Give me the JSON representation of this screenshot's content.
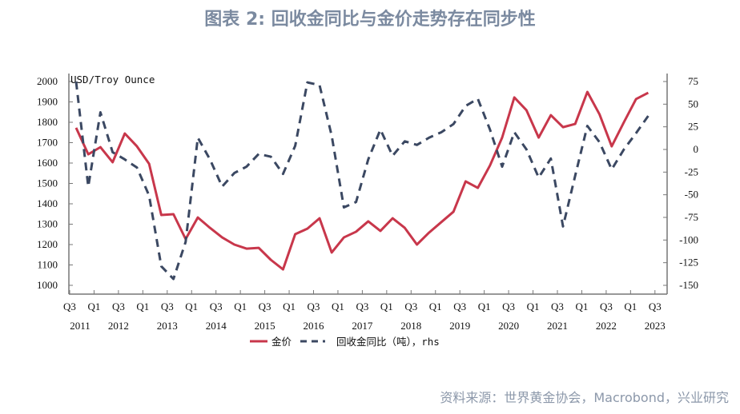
{
  "title": "图表 2:  回收金同比与金价走势存在同步性",
  "source": "资料来源：世界黄金协会，Macrobond，兴业研究",
  "chart_data": {
    "type": "line",
    "title": "图表 2:  回收金同比与金价走势存在同步性",
    "left_axis_label": "USD/Troy Ounce",
    "left_ylim": [
      1000,
      2000
    ],
    "left_ticks": [
      1000,
      1100,
      1200,
      1300,
      1400,
      1500,
      1600,
      1700,
      1800,
      1900,
      2000
    ],
    "right_ylim": [
      -150,
      75
    ],
    "right_ticks": [
      -150,
      -125,
      -100,
      -75,
      -50,
      -25,
      0,
      25,
      50,
      75
    ],
    "x_tick_labels": [
      "Q3",
      "Q1",
      "Q3",
      "Q1",
      "Q3",
      "Q1",
      "Q3",
      "Q1",
      "Q3",
      "Q1",
      "Q3",
      "Q1",
      "Q3",
      "Q1",
      "Q3",
      "Q1",
      "Q3",
      "Q1",
      "Q3",
      "Q1",
      "Q3",
      "Q1",
      "Q3",
      "Q1",
      "Q3"
    ],
    "x_year_labels": [
      "2011",
      "2012",
      "2013",
      "2014",
      "2015",
      "2016",
      "2017",
      "2018",
      "2019",
      "2020",
      "2021",
      "2022",
      "2023"
    ],
    "x_start": "2011 Q3",
    "grid": false,
    "legend_position": "bottom",
    "colors": {
      "gold": "#c8374b",
      "recycle": "#3b4862"
    },
    "series": [
      {
        "name": "金价",
        "axis": "left",
        "style": "solid",
        "values": [
          1773,
          1643,
          1678,
          1604,
          1745,
          1682,
          1596,
          1345,
          1349,
          1227,
          1333,
          1282,
          1235,
          1200,
          1180,
          1184,
          1125,
          1078,
          1251,
          1278,
          1329,
          1161,
          1235,
          1263,
          1314,
          1267,
          1329,
          1282,
          1200,
          1259,
          1310,
          1361,
          1510,
          1478,
          1588,
          1725,
          1922,
          1859,
          1725,
          1835,
          1776,
          1792,
          1949,
          1839,
          1682,
          1800,
          1914,
          1945
        ]
      },
      {
        "name": "回收金同比（吨），rhs",
        "axis": "right",
        "style": "dashed",
        "values": [
          75,
          -41,
          41,
          -3,
          -11,
          -20,
          -51,
          -129,
          -143,
          -102,
          13,
          -11,
          -41,
          -26,
          -19,
          -5,
          -8,
          -27,
          4,
          74,
          71,
          15,
          -64,
          -58,
          -11,
          22,
          -7,
          9,
          5,
          13,
          19,
          28,
          48,
          56,
          22,
          -19,
          19,
          0,
          -31,
          -10,
          -85,
          -29,
          26,
          8,
          -22,
          0,
          18,
          37
        ]
      }
    ]
  }
}
